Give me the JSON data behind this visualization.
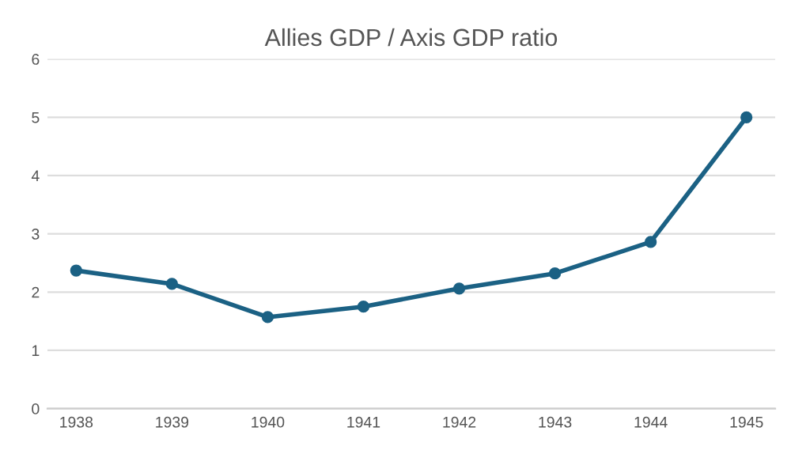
{
  "chart_data": {
    "type": "line",
    "title": "Allies GDP / Axis GDP ratio",
    "categories": [
      "1938",
      "1939",
      "1940",
      "1941",
      "1942",
      "1943",
      "1944",
      "1945"
    ],
    "series": [
      {
        "color": "#1b6184",
        "values": [
          2.37,
          2.14,
          1.57,
          1.75,
          2.06,
          2.32,
          2.86,
          5.0
        ]
      }
    ],
    "ylim": [
      0,
      6
    ],
    "yticks": [
      0,
      1,
      2,
      3,
      4,
      5,
      6
    ],
    "grid": "y",
    "marker": "circle",
    "line_style": "solid",
    "legend": false
  }
}
